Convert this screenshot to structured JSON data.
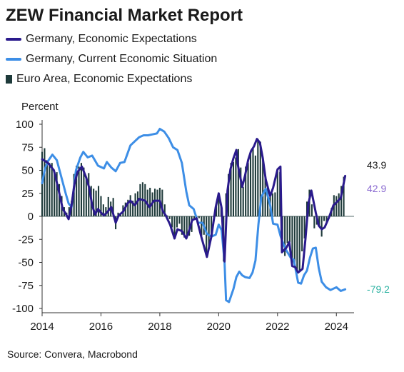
{
  "title": "ZEW Financial Market Report",
  "source": "Source: Convera, Macrobond",
  "colors": {
    "germany_expectations": "#2a1a8c",
    "germany_current": "#3d8ee6",
    "euro_expectations": "#1e3a3a",
    "label_expect": "#1a1a1a",
    "label_ea": "#8a6ad0",
    "label_current": "#2fb3a3"
  },
  "chart_data": {
    "type": "line",
    "ylabel": "Percent",
    "xlim": [
      2014,
      2024.6
    ],
    "ylim": [
      -100,
      100
    ],
    "xticks": [
      2014,
      2016,
      2018,
      2020,
      2022,
      2024
    ],
    "yticks": [
      100,
      75,
      50,
      25,
      0,
      -25,
      -50,
      -75,
      -100
    ],
    "legend": "top-left",
    "end_labels": [
      {
        "text": "43.9",
        "series": "Germany, Economic Expectations"
      },
      {
        "text": "42.9",
        "series": "Euro Area, Economic Expectations"
      },
      {
        "text": "-79.2",
        "series": "Germany, Current Economic Situation"
      }
    ],
    "series": [
      {
        "name": "Germany, Economic Expectations",
        "type": "line",
        "points": [
          [
            2014.0,
            62
          ],
          [
            2014.2,
            58
          ],
          [
            2014.4,
            50
          ],
          [
            2014.55,
            30
          ],
          [
            2014.7,
            8
          ],
          [
            2014.8,
            3
          ],
          [
            2014.9,
            -3
          ],
          [
            2015.0,
            12
          ],
          [
            2015.1,
            35
          ],
          [
            2015.2,
            48
          ],
          [
            2015.35,
            54
          ],
          [
            2015.5,
            42
          ],
          [
            2015.6,
            31
          ],
          [
            2015.7,
            12
          ],
          [
            2015.8,
            2
          ],
          [
            2015.9,
            8
          ],
          [
            2016.0,
            4
          ],
          [
            2016.1,
            1
          ],
          [
            2016.2,
            4
          ],
          [
            2016.35,
            10
          ],
          [
            2016.5,
            -7
          ],
          [
            2016.6,
            1
          ],
          [
            2016.75,
            5
          ],
          [
            2016.9,
            14
          ],
          [
            2017.0,
            17
          ],
          [
            2017.15,
            12
          ],
          [
            2017.3,
            19
          ],
          [
            2017.5,
            17
          ],
          [
            2017.65,
            10
          ],
          [
            2017.8,
            17
          ],
          [
            2018.0,
            17
          ],
          [
            2018.1,
            6
          ],
          [
            2018.2,
            1
          ],
          [
            2018.35,
            -9
          ],
          [
            2018.5,
            -24
          ],
          [
            2018.6,
            -14
          ],
          [
            2018.75,
            -16
          ],
          [
            2018.9,
            -24
          ],
          [
            2019.0,
            -15
          ],
          [
            2019.1,
            -4
          ],
          [
            2019.25,
            -2
          ],
          [
            2019.4,
            -21
          ],
          [
            2019.6,
            -44
          ],
          [
            2019.75,
            -22
          ],
          [
            2019.9,
            10
          ],
          [
            2020.0,
            25
          ],
          [
            2020.1,
            9
          ],
          [
            2020.2,
            -49
          ],
          [
            2020.3,
            28
          ],
          [
            2020.4,
            51
          ],
          [
            2020.5,
            63
          ],
          [
            2020.6,
            72
          ],
          [
            2020.65,
            56
          ],
          [
            2020.8,
            32
          ],
          [
            2020.9,
            45
          ],
          [
            2021.0,
            61
          ],
          [
            2021.1,
            71
          ],
          [
            2021.2,
            76
          ],
          [
            2021.3,
            84
          ],
          [
            2021.4,
            80
          ],
          [
            2021.5,
            63
          ],
          [
            2021.6,
            40
          ],
          [
            2021.75,
            22
          ],
          [
            2021.85,
            31
          ],
          [
            2022.0,
            51
          ],
          [
            2022.1,
            54
          ],
          [
            2022.15,
            -39
          ],
          [
            2022.3,
            -34
          ],
          [
            2022.4,
            -28
          ],
          [
            2022.5,
            -54
          ],
          [
            2022.6,
            -55
          ],
          [
            2022.7,
            -61
          ],
          [
            2022.85,
            -57
          ],
          [
            2022.95,
            -24
          ],
          [
            2023.05,
            14
          ],
          [
            2023.15,
            28
          ],
          [
            2023.3,
            4
          ],
          [
            2023.4,
            -10
          ],
          [
            2023.5,
            -14
          ],
          [
            2023.6,
            -12
          ],
          [
            2023.75,
            -1
          ],
          [
            2023.9,
            12
          ],
          [
            2024.0,
            15
          ],
          [
            2024.15,
            20
          ],
          [
            2024.3,
            43.9
          ]
        ]
      },
      {
        "name": "Germany, Current Economic Situation",
        "type": "line",
        "points": [
          [
            2014.0,
            36
          ],
          [
            2014.1,
            52
          ],
          [
            2014.2,
            60
          ],
          [
            2014.35,
            67
          ],
          [
            2014.5,
            61
          ],
          [
            2014.65,
            43
          ],
          [
            2014.8,
            25
          ],
          [
            2014.9,
            14
          ],
          [
            2015.0,
            10
          ],
          [
            2015.15,
            50
          ],
          [
            2015.3,
            64
          ],
          [
            2015.4,
            70
          ],
          [
            2015.55,
            64
          ],
          [
            2015.7,
            66
          ],
          [
            2015.9,
            55
          ],
          [
            2016.1,
            52
          ],
          [
            2016.2,
            59
          ],
          [
            2016.35,
            53
          ],
          [
            2016.5,
            49
          ],
          [
            2016.65,
            58
          ],
          [
            2016.8,
            59
          ],
          [
            2017.0,
            77
          ],
          [
            2017.1,
            80
          ],
          [
            2017.3,
            86
          ],
          [
            2017.45,
            88
          ],
          [
            2017.6,
            88
          ],
          [
            2017.75,
            89
          ],
          [
            2017.9,
            90
          ],
          [
            2018.0,
            95
          ],
          [
            2018.15,
            92
          ],
          [
            2018.3,
            85
          ],
          [
            2018.45,
            75
          ],
          [
            2018.6,
            72
          ],
          [
            2018.75,
            58
          ],
          [
            2018.9,
            27
          ],
          [
            2019.0,
            12
          ],
          [
            2019.15,
            8
          ],
          [
            2019.3,
            -7
          ],
          [
            2019.45,
            -7
          ],
          [
            2019.6,
            -19
          ],
          [
            2019.75,
            -22
          ],
          [
            2019.9,
            -20
          ],
          [
            2020.0,
            -9
          ],
          [
            2020.1,
            -15
          ],
          [
            2020.2,
            -50
          ],
          [
            2020.25,
            -91
          ],
          [
            2020.35,
            -93
          ],
          [
            2020.5,
            -79
          ],
          [
            2020.6,
            -66
          ],
          [
            2020.7,
            -60
          ],
          [
            2020.8,
            -64
          ],
          [
            2020.9,
            -66
          ],
          [
            2021.05,
            -67
          ],
          [
            2021.15,
            -61
          ],
          [
            2021.25,
            -48
          ],
          [
            2021.35,
            -9
          ],
          [
            2021.45,
            21
          ],
          [
            2021.6,
            30
          ],
          [
            2021.75,
            12
          ],
          [
            2021.85,
            -8
          ],
          [
            2022.0,
            -9
          ],
          [
            2022.1,
            -21
          ],
          [
            2022.2,
            -30
          ],
          [
            2022.3,
            -37
          ],
          [
            2022.45,
            -45
          ],
          [
            2022.55,
            -47
          ],
          [
            2022.7,
            -72
          ],
          [
            2022.8,
            -73
          ],
          [
            2022.9,
            -64
          ],
          [
            2023.0,
            -59
          ],
          [
            2023.1,
            -45
          ],
          [
            2023.2,
            -35
          ],
          [
            2023.3,
            -34
          ],
          [
            2023.4,
            -56
          ],
          [
            2023.5,
            -71
          ],
          [
            2023.65,
            -77
          ],
          [
            2023.8,
            -80
          ],
          [
            2024.0,
            -77
          ],
          [
            2024.15,
            -81
          ],
          [
            2024.3,
            -79.2
          ]
        ]
      },
      {
        "name": "Euro Area, Economic Expectations",
        "type": "bar",
        "points": [
          [
            2014.0,
            70
          ],
          [
            2014.083,
            74
          ],
          [
            2014.167,
            61
          ],
          [
            2014.25,
            58
          ],
          [
            2014.333,
            58
          ],
          [
            2014.417,
            48
          ],
          [
            2014.5,
            48
          ],
          [
            2014.583,
            35
          ],
          [
            2014.667,
            22
          ],
          [
            2014.75,
            10
          ],
          [
            2014.833,
            4
          ],
          [
            2014.917,
            10
          ],
          [
            2015.0,
            17
          ],
          [
            2015.083,
            46
          ],
          [
            2015.167,
            55
          ],
          [
            2015.25,
            54
          ],
          [
            2015.333,
            58
          ],
          [
            2015.417,
            53
          ],
          [
            2015.5,
            42
          ],
          [
            2015.583,
            47
          ],
          [
            2015.667,
            33
          ],
          [
            2015.75,
            30
          ],
          [
            2015.833,
            28
          ],
          [
            2015.917,
            33
          ],
          [
            2016.0,
            22
          ],
          [
            2016.083,
            13
          ],
          [
            2016.167,
            10
          ],
          [
            2016.25,
            21
          ],
          [
            2016.333,
            16
          ],
          [
            2016.417,
            20
          ],
          [
            2016.5,
            -14
          ],
          [
            2016.583,
            4
          ],
          [
            2016.667,
            2
          ],
          [
            2016.75,
            12
          ],
          [
            2016.833,
            15
          ],
          [
            2016.917,
            18
          ],
          [
            2017.0,
            23
          ],
          [
            2017.083,
            17
          ],
          [
            2017.167,
            25
          ],
          [
            2017.25,
            27
          ],
          [
            2017.333,
            35
          ],
          [
            2017.417,
            37
          ],
          [
            2017.5,
            35
          ],
          [
            2017.583,
            29
          ],
          [
            2017.667,
            31
          ],
          [
            2017.75,
            26
          ],
          [
            2017.833,
            30
          ],
          [
            2017.917,
            29
          ],
          [
            2018.0,
            31
          ],
          [
            2018.083,
            29
          ],
          [
            2018.167,
            13
          ],
          [
            2018.25,
            1
          ],
          [
            2018.333,
            -3
          ],
          [
            2018.417,
            -12
          ],
          [
            2018.5,
            -24
          ],
          [
            2018.583,
            -12
          ],
          [
            2018.667,
            -8
          ],
          [
            2018.75,
            -20
          ],
          [
            2018.833,
            -23
          ],
          [
            2018.917,
            -22
          ],
          [
            2019.0,
            -21
          ],
          [
            2019.083,
            -17
          ],
          [
            2019.167,
            -3
          ],
          [
            2019.25,
            -1
          ],
          [
            2019.333,
            -2
          ],
          [
            2019.417,
            -21
          ],
          [
            2019.5,
            -20
          ],
          [
            2019.583,
            -43
          ],
          [
            2019.667,
            -33
          ],
          [
            2019.75,
            -23
          ],
          [
            2019.833,
            -1
          ],
          [
            2019.917,
            11
          ],
          [
            2020.0,
            25
          ],
          [
            2020.083,
            10
          ],
          [
            2020.167,
            -49
          ],
          [
            2020.25,
            25
          ],
          [
            2020.333,
            46
          ],
          [
            2020.417,
            58
          ],
          [
            2020.5,
            59
          ],
          [
            2020.583,
            64
          ],
          [
            2020.667,
            73
          ],
          [
            2020.75,
            53
          ],
          [
            2020.833,
            32
          ],
          [
            2020.917,
            54
          ],
          [
            2021.0,
            58
          ],
          [
            2021.083,
            69
          ],
          [
            2021.167,
            74
          ],
          [
            2021.25,
            66
          ],
          [
            2021.333,
            84
          ],
          [
            2021.417,
            81
          ],
          [
            2021.5,
            61
          ],
          [
            2021.583,
            42
          ],
          [
            2021.667,
            31
          ],
          [
            2021.75,
            21
          ],
          [
            2021.833,
            25
          ],
          [
            2021.917,
            26
          ],
          [
            2022.0,
            49
          ],
          [
            2022.083,
            48
          ],
          [
            2022.167,
            -38
          ],
          [
            2022.25,
            -43
          ],
          [
            2022.333,
            -29
          ],
          [
            2022.417,
            -28
          ],
          [
            2022.5,
            -51
          ],
          [
            2022.583,
            -54
          ],
          [
            2022.667,
            -60
          ],
          [
            2022.75,
            -59
          ],
          [
            2022.833,
            -38
          ],
          [
            2022.917,
            -24
          ],
          [
            2023.0,
            16
          ],
          [
            2023.083,
            29
          ],
          [
            2023.167,
            13
          ],
          [
            2023.25,
            -13
          ],
          [
            2023.333,
            -9
          ],
          [
            2023.417,
            -10
          ],
          [
            2023.5,
            -22
          ],
          [
            2023.583,
            -5
          ],
          [
            2023.667,
            -8
          ],
          [
            2023.75,
            -2
          ],
          [
            2023.833,
            9
          ],
          [
            2023.917,
            23
          ],
          [
            2024.0,
            22
          ],
          [
            2024.083,
            25
          ],
          [
            2024.167,
            33
          ],
          [
            2024.25,
            43
          ]
        ]
      }
    ]
  }
}
